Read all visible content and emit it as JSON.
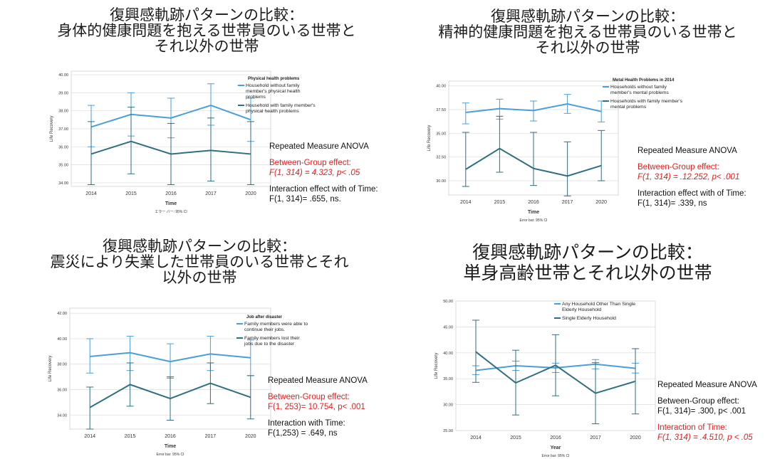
{
  "panels": [
    {
      "title_lines": [
        "復興感軌跡パターンの比較：",
        "身体的健康問題を抱える世帯員のいる世帯と",
        "それ以外の世帯"
      ],
      "stats": [
        {
          "text": "Repeated Measure ANOVA",
          "color": "black",
          "lines": []
        },
        {
          "text": "Between-Group effect:",
          "color": "red",
          "lines": [
            "F(1, 314) = 4.323,  p< .05"
          ]
        },
        {
          "text": "Interaction effect with of Time:",
          "color": "black",
          "lines": [
            "F(1, 314)= .655,  ns."
          ]
        }
      ]
    },
    {
      "title_lines": [
        "復興感軌跡パターンの比較：",
        "精神的健康問題を抱える世帯員のいる世帯と",
        "それ以外の世帯"
      ],
      "stats": [
        {
          "text": "Repeated Measure ANOVA",
          "color": "black",
          "lines": []
        },
        {
          "text": "Between-Group effect:",
          "color": "red",
          "lines": [
            "F(1, 314) = .12.252,  p< .001"
          ]
        },
        {
          "text": "Interaction effect with of Time:",
          "color": "black",
          "lines": [
            "F(1, 314)= .339,  ns"
          ]
        }
      ]
    },
    {
      "title_lines": [
        "復興感軌跡パターンの比較：",
        "震災により失業した世帯員のいる世帯とそれ",
        "以外の世帯"
      ],
      "stats": [
        {
          "text": "Repeated Measure ANOVA",
          "color": "black",
          "lines": []
        },
        {
          "text": "Between-Group effect:",
          "color": "red",
          "lines": [
            "F(1, 253)= 10.754, p< .001"
          ]
        },
        {
          "text": "Interaction with Time:",
          "color": "black",
          "lines": [
            "F(1,253) = .649, ns"
          ]
        }
      ]
    },
    {
      "title_lines": [
        "復興感軌跡パターンの比較：",
        "単身高齢世帯とそれ以外の世帯"
      ],
      "stats": [
        {
          "text": "Repeated Measure ANOVA",
          "color": "black",
          "lines": []
        },
        {
          "text": "Between-Group effect:",
          "color": "black",
          "lines": [
            "F(1, 314)= .300, p< .001"
          ]
        },
        {
          "text": "Interaction of Time:",
          "color": "red",
          "lines": [
            "F(1, 314) = .4.510, p < .05"
          ]
        }
      ]
    }
  ],
  "chart_data": [
    {
      "type": "line",
      "title": "",
      "xlabel": "Time",
      "ylabel": "Life Recovery",
      "footnote": "エラー バー: 95% CI",
      "legend_title": "Physical health problems",
      "x": [
        "2014",
        "2015",
        "2016",
        "2017",
        "2020"
      ],
      "ylim": [
        33.8,
        40.2
      ],
      "yticks": [
        "34.00",
        "35.00",
        "36.00",
        "37.00",
        "38.00",
        "39.00",
        "40.00"
      ],
      "series": [
        {
          "name": "Household without family member's physical health problems",
          "color": "#4a9fd8",
          "values": [
            37.1,
            37.8,
            37.6,
            38.3,
            37.5
          ],
          "ci_low": [
            36.0,
            36.6,
            36.5,
            37.2,
            36.3
          ],
          "ci_high": [
            38.3,
            39.0,
            38.7,
            39.5,
            38.7
          ]
        },
        {
          "name": "Household with family member's physical health problems",
          "color": "#2f6f80",
          "values": [
            35.6,
            36.3,
            35.6,
            35.8,
            35.6
          ],
          "ci_low": [
            33.9,
            34.5,
            33.9,
            34.1,
            33.9
          ],
          "ci_high": [
            37.4,
            38.2,
            37.3,
            37.6,
            37.4
          ]
        }
      ]
    },
    {
      "type": "line",
      "title": "",
      "xlabel": "Time",
      "ylabel": "Life Recovery",
      "footnote": "Error bar: 95% CI",
      "legend_title": "Metal Health Problems in 2014",
      "x": [
        "2014",
        "2015",
        "2016",
        "2017",
        "2020"
      ],
      "ylim": [
        28.5,
        40.5
      ],
      "yticks": [
        "30.00",
        "32.50",
        "35.00",
        "37.50",
        "40.00"
      ],
      "series": [
        {
          "name": "Households without family member's mental problems",
          "color": "#4a9fd8",
          "values": [
            37.2,
            37.6,
            37.4,
            38.1,
            37.3
          ],
          "ci_low": [
            36.0,
            36.5,
            36.3,
            37.1,
            36.2
          ],
          "ci_high": [
            38.2,
            38.6,
            38.4,
            39.1,
            38.4
          ]
        },
        {
          "name": "Households with family member's mental problems",
          "color": "#2f6f80",
          "values": [
            31.2,
            33.4,
            31.3,
            30.5,
            31.6
          ],
          "ci_low": [
            29.4,
            30.9,
            29.5,
            28.4,
            30.0
          ],
          "ci_high": [
            35.1,
            36.8,
            35.1,
            34.1,
            35.3
          ]
        }
      ]
    },
    {
      "type": "line",
      "title": "",
      "xlabel": "Time",
      "ylabel": "Life Recovery",
      "footnote": "Error bar: 95% CI",
      "legend_title": "Job after disaster",
      "x": [
        "2014",
        "2015",
        "2016",
        "2017",
        "2020"
      ],
      "ylim": [
        32.9,
        42.4
      ],
      "yticks": [
        "34.00",
        "36.00",
        "38.00",
        "40.00",
        "42.00"
      ],
      "series": [
        {
          "name": "Family members were able to continue their jobs.",
          "color": "#4a9fd8",
          "values": [
            38.6,
            38.9,
            38.2,
            38.8,
            38.5
          ],
          "ci_low": [
            37.3,
            37.5,
            36.9,
            37.5,
            37.1
          ],
          "ci_high": [
            40.0,
            40.2,
            39.6,
            40.2,
            39.9
          ]
        },
        {
          "name": "Family members lost their jobs due to the disaster",
          "color": "#2f6f80",
          "values": [
            34.6,
            36.4,
            35.3,
            36.5,
            35.4
          ],
          "ci_low": [
            32.9,
            34.7,
            33.6,
            34.9,
            33.7
          ],
          "ci_high": [
            36.2,
            38.1,
            37.0,
            38.1,
            37.1
          ]
        }
      ]
    },
    {
      "type": "line",
      "title": "",
      "xlabel": "Year",
      "ylabel": "Life Recovery",
      "footnote": "Error bar: 95% CI",
      "legend_title": "",
      "x": [
        "2014",
        "2015",
        "2016",
        "2017",
        "2020"
      ],
      "ylim": [
        25.0,
        50.0
      ],
      "yticks": [
        "25.00",
        "30.00",
        "35.00",
        "40.00",
        "45.00",
        "50.00"
      ],
      "series": [
        {
          "name": "Any Household Other Than Single Elderly Household",
          "color": "#4a9fd8",
          "values": [
            36.6,
            37.5,
            37.1,
            37.8,
            37.0
          ],
          "ci_low": [
            35.8,
            36.6,
            36.2,
            36.9,
            36.1
          ],
          "ci_high": [
            37.5,
            38.4,
            38.0,
            38.7,
            38.0
          ]
        },
        {
          "name": "Single Elderly Household",
          "color": "#2f6f80",
          "values": [
            40.2,
            34.2,
            37.6,
            32.2,
            34.5
          ],
          "ci_low": [
            34.3,
            28.0,
            31.7,
            26.3,
            28.2
          ],
          "ci_high": [
            46.3,
            40.5,
            43.5,
            38.1,
            40.8
          ]
        }
      ]
    }
  ]
}
